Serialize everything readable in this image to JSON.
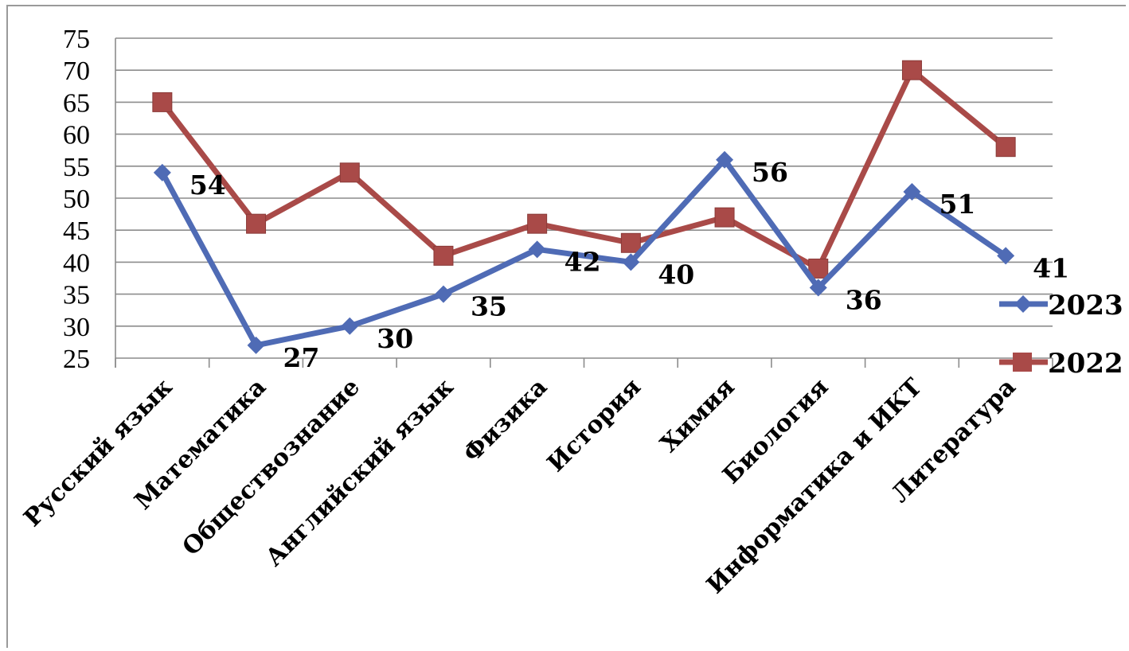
{
  "chart_data": {
    "type": "line",
    "title": "",
    "xlabel": "",
    "ylabel": "",
    "categories": [
      "Русский язык",
      "Математика",
      "Обществознание",
      "Английский язык",
      "Физика",
      "История",
      "Химия",
      "Биология",
      "Информатика и  ИКТ",
      "Литература"
    ],
    "series": [
      {
        "name": "2023",
        "color": "#4f6bb5",
        "marker": "diamond",
        "values": [
          54,
          27,
          30,
          35,
          42,
          40,
          56,
          36,
          51,
          41
        ],
        "labels": [
          "54",
          "27",
          "30",
          "35",
          "42",
          "40",
          "56",
          "36",
          "51",
          "41"
        ]
      },
      {
        "name": "2022",
        "color": "#a94a48",
        "marker": "square",
        "values": [
          65,
          46,
          54,
          41,
          46,
          43,
          47,
          39,
          70,
          58
        ]
      }
    ],
    "ylim": [
      25,
      75
    ],
    "yticks": [
      "25",
      "30",
      "35",
      "40",
      "45",
      "50",
      "55",
      "60",
      "65",
      "70",
      "75"
    ],
    "grid": true,
    "legend_position": "right"
  }
}
